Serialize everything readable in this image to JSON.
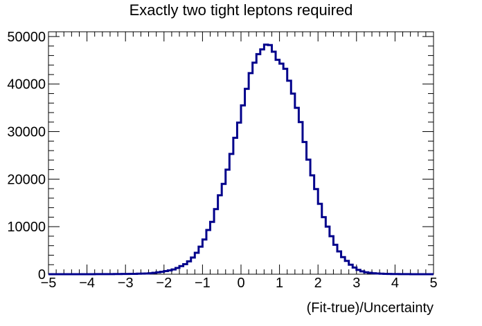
{
  "chart_data": {
    "type": "histogram",
    "title": "Exactly two tight leptons required",
    "xlabel": "(Fit-true)/Uncertainty",
    "ylabel": "",
    "xlim": [
      -5,
      5
    ],
    "ylim": [
      0,
      51000
    ],
    "x_ticks": [
      -5,
      -4,
      -3,
      -2,
      -1,
      0,
      1,
      2,
      3,
      4,
      5
    ],
    "x_tick_labels": [
      "−5",
      "−4",
      "−3",
      "−2",
      "−1",
      "0",
      "1",
      "2",
      "3",
      "4",
      "5"
    ],
    "y_ticks": [
      0,
      10000,
      20000,
      30000,
      40000,
      50000
    ],
    "y_tick_labels": [
      "0",
      "10000",
      "20000",
      "30000",
      "40000",
      "50000"
    ],
    "bin_width": 0.1,
    "series": [
      {
        "color": "#00008b",
        "bin_edges_start": -5.0,
        "values": [
          0,
          0,
          0,
          0,
          0,
          0,
          0,
          0,
          0,
          0,
          5,
          8,
          10,
          12,
          15,
          20,
          25,
          30,
          40,
          50,
          60,
          70,
          80,
          100,
          120,
          150,
          200,
          300,
          400,
          500,
          650,
          800,
          1000,
          1300,
          1700,
          2100,
          2700,
          3500,
          4500,
          5800,
          7300,
          9300,
          11000,
          13700,
          16600,
          19000,
          22000,
          25300,
          28700,
          31900,
          35500,
          39000,
          42300,
          44500,
          46300,
          47300,
          48300,
          48200,
          46800,
          45100,
          44300,
          43200,
          40700,
          38000,
          35000,
          32000,
          27800,
          24100,
          20800,
          17900,
          14800,
          12000,
          10000,
          8000,
          6200,
          4800,
          3600,
          2800,
          2000,
          1400,
          900,
          600,
          400,
          300,
          200,
          150,
          100,
          80,
          60,
          40,
          30,
          20,
          15,
          10,
          8,
          5,
          3,
          2,
          1,
          0
        ]
      }
    ],
    "grid": false,
    "legend": "none"
  }
}
